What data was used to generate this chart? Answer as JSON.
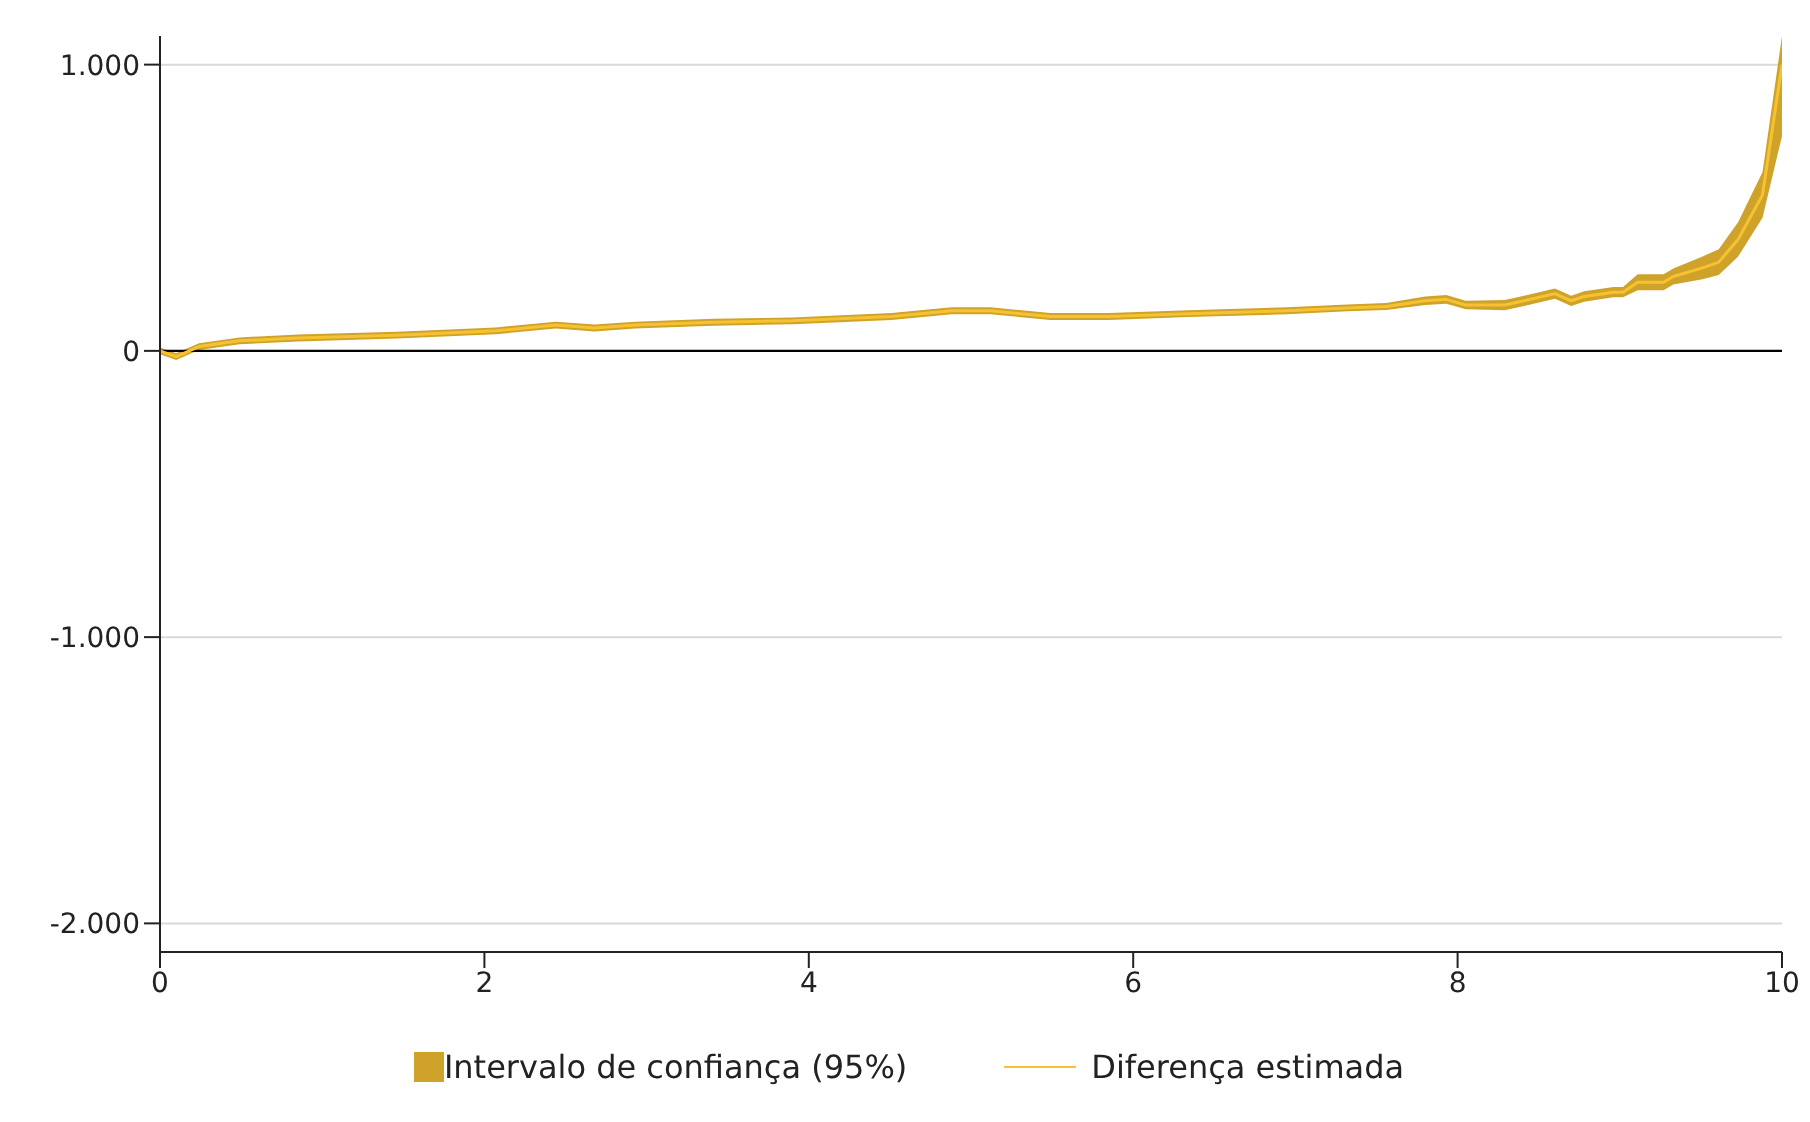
{
  "chart_data": {
    "type": "line",
    "x": [
      0,
      0.1,
      0.24,
      0.49,
      0.85,
      1.46,
      2.07,
      2.44,
      2.68,
      2.93,
      3.41,
      3.9,
      4.51,
      4.88,
      5.12,
      5.49,
      5.85,
      6.34,
      6.95,
      7.32,
      7.56,
      7.8,
      7.93,
      8.05,
      8.29,
      8.41,
      8.6,
      8.7,
      8.78,
      8.96,
      9.02,
      9.11,
      9.27,
      9.33,
      9.51,
      9.61,
      9.73,
      9.88,
      10
    ],
    "series": [
      {
        "name": "Diferença estimada",
        "color": "#f7c232",
        "values": [
          0,
          -20,
          15,
          35,
          45,
          55,
          70,
          90,
          80,
          90,
          100,
          105,
          120,
          140,
          140,
          120,
          120,
          130,
          140,
          150,
          155,
          175,
          180,
          160,
          160,
          175,
          200,
          175,
          190,
          205,
          205,
          240,
          240,
          260,
          290,
          310,
          390,
          545,
          1000
        ],
        "lower": [
          -12,
          -32,
          3,
          23,
          33,
          43,
          58,
          78,
          68,
          78,
          88,
          93,
          108,
          128,
          128,
          108,
          108,
          118,
          128,
          138,
          143,
          160,
          165,
          145,
          142,
          157,
          182,
          157,
          172,
          187,
          187,
          212,
          212,
          232,
          250,
          265,
          330,
          465,
          750
        ],
        "upper": [
          12,
          -8,
          27,
          47,
          57,
          67,
          82,
          102,
          92,
          102,
          112,
          117,
          132,
          152,
          152,
          132,
          132,
          142,
          152,
          162,
          167,
          190,
          195,
          175,
          178,
          193,
          218,
          193,
          208,
          223,
          223,
          268,
          268,
          288,
          330,
          355,
          450,
          625,
          1100
        ]
      }
    ],
    "annotations": [
      "Intervalo de confiança (95%)"
    ],
    "xlim": [
      0,
      10
    ],
    "xticks": [
      0,
      2,
      4,
      6,
      8,
      10
    ],
    "ylim": [
      -2100,
      1100
    ],
    "yticks": [
      {
        "value": -2000,
        "label": "-2.000"
      },
      {
        "value": -1000,
        "label": "-1.000"
      },
      0,
      {
        "value": 1000,
        "label": "1.000"
      }
    ],
    "ref_lines": [
      {
        "axis": "y",
        "value": 0,
        "color": "#000000"
      }
    ],
    "grid": "y",
    "legend": "bottom"
  }
}
